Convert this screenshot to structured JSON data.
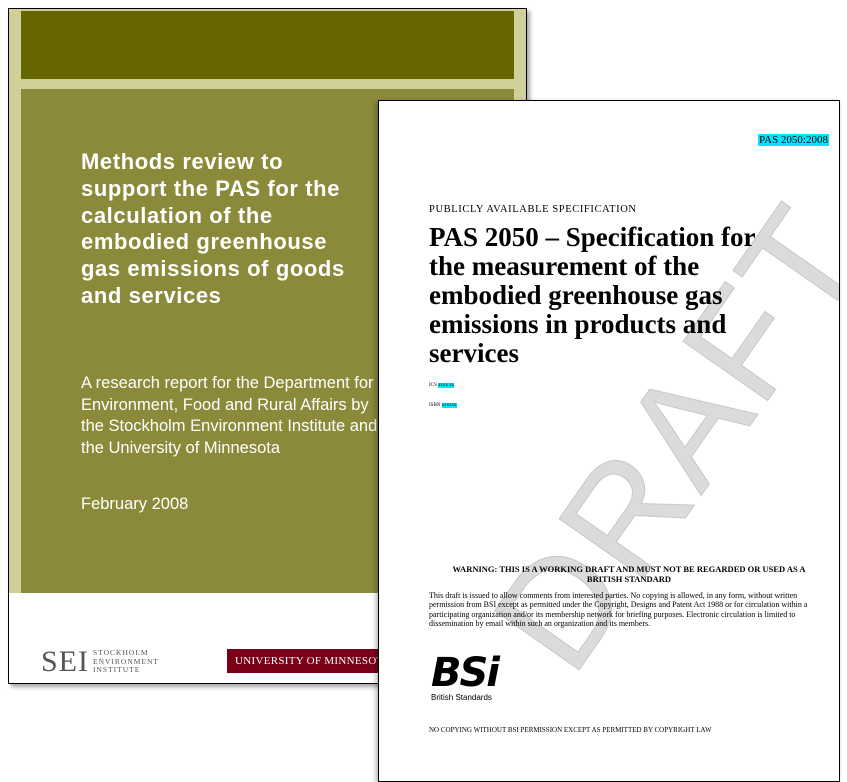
{
  "back_document": {
    "title_lines": [
      "Methods review to",
      "support the PAS for the",
      "calculation of the",
      "embodied greenhouse",
      "gas emissions of goods",
      "and services"
    ],
    "subtitle_lines": [
      "A research report for the Department for",
      "Environment, Food and Rural Affairs by",
      "the Stockholm Environment Institute and",
      "the University of Minnesota"
    ],
    "date": "February 2008",
    "logos": {
      "sei": "SEI",
      "sei_name_lines": [
        "STOCKHOLM",
        "ENVIRONMENT",
        "INSTITUTE"
      ],
      "umn": "UNIVERSITY OF MINNESOTA"
    }
  },
  "front_document": {
    "code": "PAS 2050:2008",
    "kicker": "PUBLICLY AVAILABLE SPECIFICATION",
    "title_lines": [
      "PAS 2050 – Specification for",
      "the measurement of the",
      "embodied greenhouse gas",
      "emissions in products and",
      "services"
    ],
    "ics": {
      "label": "ICS",
      "value": "xxxx xx"
    },
    "isbn": {
      "label": "ISBN",
      "value": "xxxxxx"
    },
    "watermark": "DRAFT",
    "warning": "WARNING: THIS IS A WORKING DRAFT AND MUST NOT BE REGARDED OR USED AS A BRITISH STANDARD",
    "notice": "This draft is issued to allow comments from interested parties. No copying is allowed, in any form, without written permission from BSI except as permitted under the Copyright, Designs and Patent Act 1988 or for circulation within a participating organization and/or its membership network for briefing purposes. Electronic circulation is limited to dissemination by email within such an organization and its members.",
    "logo": {
      "mark": "BSi",
      "name": "British Standards"
    },
    "footer": "NO COPYING WITHOUT BSI PERMISSION EXCEPT AS PERMITTED BY COPYRIGHT LAW"
  }
}
